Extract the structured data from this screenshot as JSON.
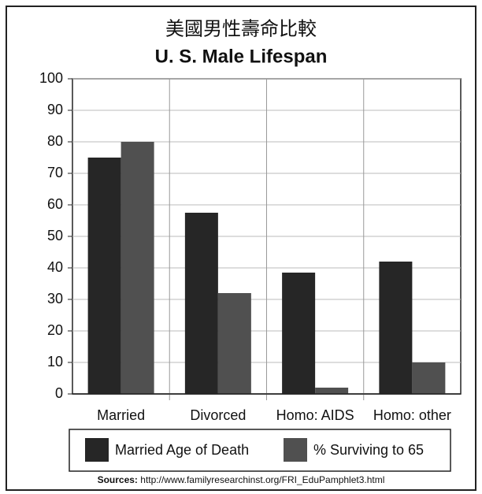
{
  "chart_data": {
    "type": "bar",
    "title": "美國男性壽命比較",
    "subtitle": "U. S. Male Lifespan",
    "categories": [
      "Married",
      "Divorced",
      "Homo: AIDS",
      "Homo: other"
    ],
    "series": [
      {
        "name": "Married Age of Death",
        "color": "#262626",
        "values": [
          75,
          57.5,
          38.5,
          42
        ]
      },
      {
        "name": "% Surviving to 65",
        "color": "#505050",
        "values": [
          80,
          32,
          2,
          10
        ]
      }
    ],
    "ylim": [
      0,
      100
    ],
    "yticks": [
      0,
      10,
      20,
      30,
      40,
      50,
      60,
      70,
      80,
      90,
      100
    ],
    "grid": true,
    "source_label": "Sources:",
    "source_url": "http://www.familyresearchinst.org/FRI_EduPamphlet3.html"
  }
}
